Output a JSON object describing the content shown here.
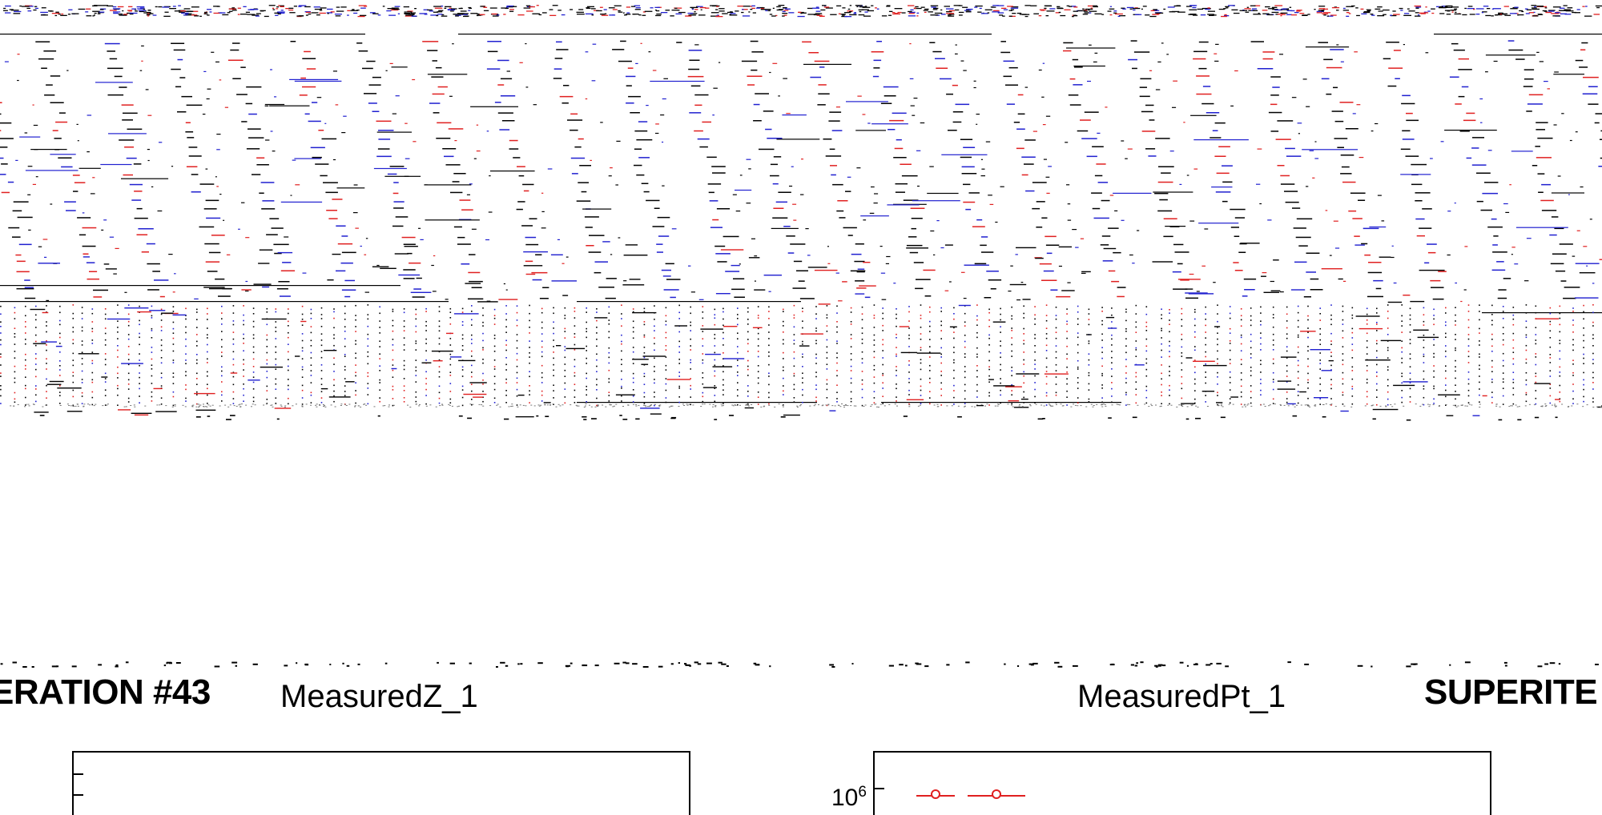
{
  "page": {
    "iteration_left": "ERATION #43",
    "iteration_right": "SUPERITE"
  },
  "chart_data": [
    {
      "type": "scatter",
      "title": "MeasuredZ_1",
      "xlabel": "",
      "ylabel": "",
      "yscale": "linear",
      "series": [],
      "grid": false
    },
    {
      "type": "scatter",
      "title": "MeasuredPt_1",
      "xlabel": "",
      "ylabel": "",
      "yscale": "log",
      "ytick_labels": [
        "10^6"
      ],
      "ytick_base": "10",
      "ytick_exp": "6",
      "series": [
        {
          "color": "#e02020",
          "marker": "open-circle",
          "x": [
            1,
            2
          ],
          "y": [
            1000000,
            1000000
          ],
          "xerr": [
            1,
            1.5
          ]
        }
      ],
      "grid": false
    }
  ],
  "colors": {
    "axes": "#000000",
    "series_red": "#e02020",
    "series_blue": "#2020d0",
    "background": "#ffffff"
  }
}
